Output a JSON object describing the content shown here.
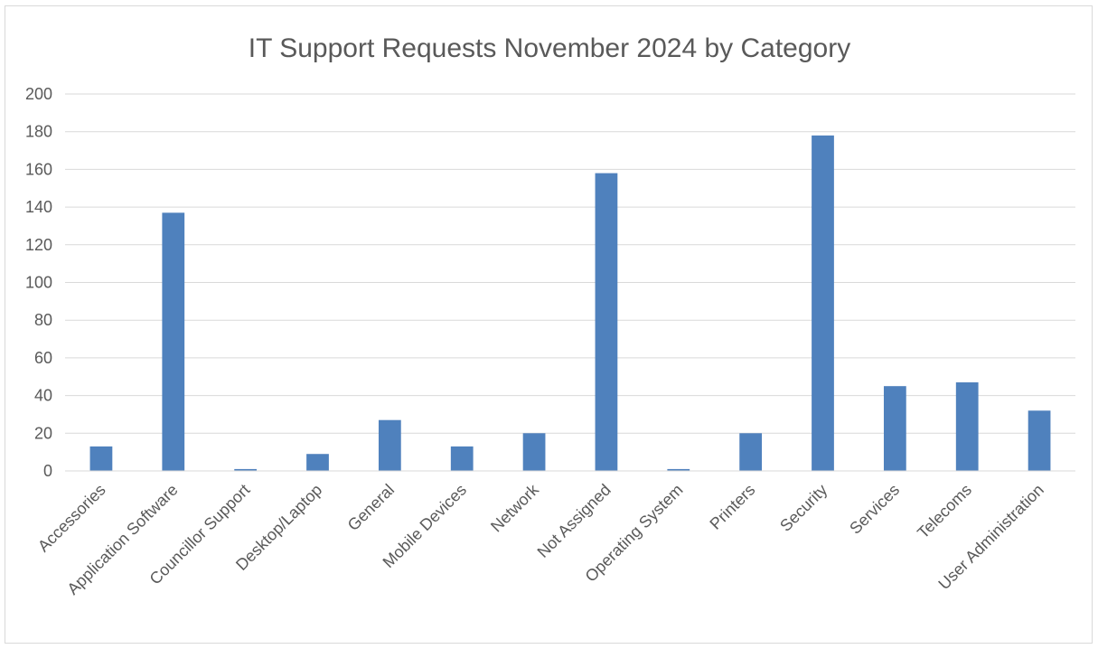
{
  "chart_data": {
    "type": "bar",
    "title": "IT Support Requests November 2024 by Category",
    "xlabel": "",
    "ylabel": "",
    "ylim": [
      0,
      200
    ],
    "yticks": [
      0,
      20,
      40,
      60,
      80,
      100,
      120,
      140,
      160,
      180,
      200
    ],
    "grid": true,
    "legend": "none",
    "bar_color": "#4f81bd",
    "categories": [
      "Accessories",
      "Application Software",
      "Councillor Support",
      "Desktop/Laptop",
      "General",
      "Mobile Devices",
      "Network",
      "Not Assigned",
      "Operating System",
      "Printers",
      "Security",
      "Services",
      "Telecoms",
      "User Administration"
    ],
    "values": [
      13,
      137,
      1,
      9,
      27,
      13,
      20,
      158,
      1,
      20,
      178,
      45,
      47,
      32
    ]
  }
}
